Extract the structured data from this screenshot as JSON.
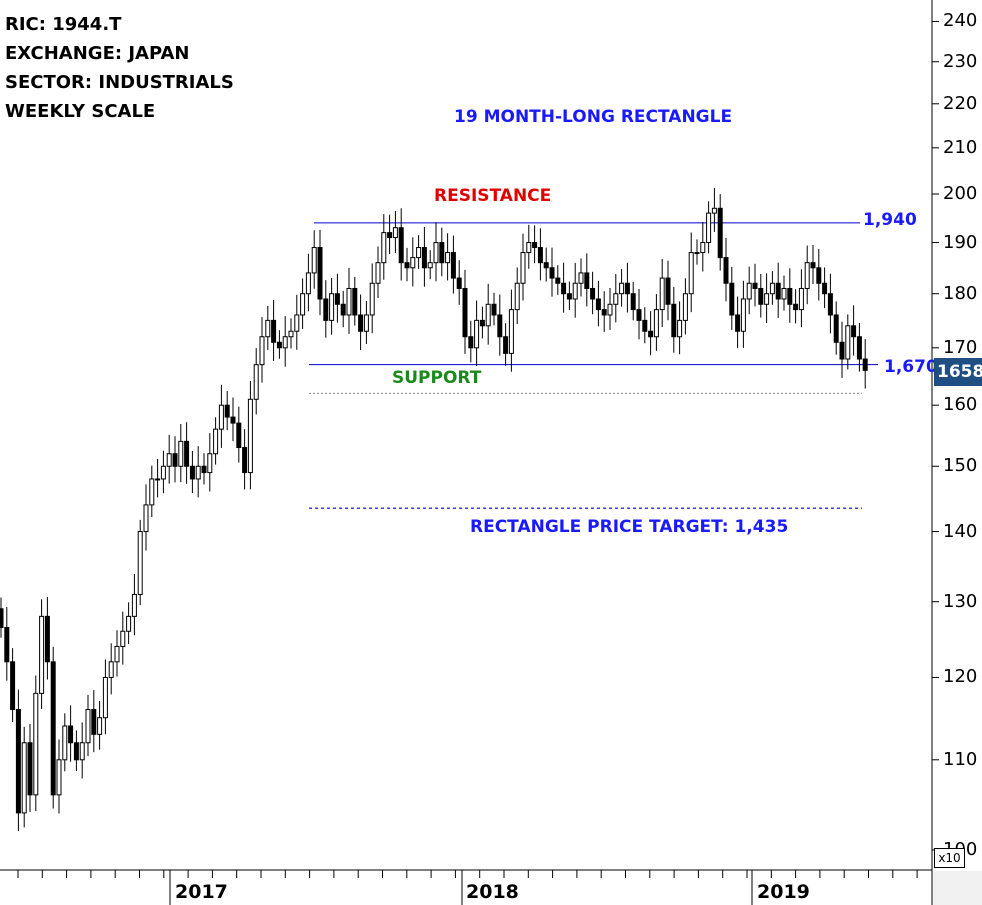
{
  "info": {
    "ric": "RIC: 1944.T",
    "exchange": "EXCHANGE: JAPAN",
    "sector": "SECTOR: INDUSTRIALS",
    "scale": "WEEKLY SCALE"
  },
  "labels": {
    "pattern": "19 MONTH-LONG RECTANGLE",
    "resistance": "RESISTANCE",
    "support": "SUPPORT",
    "target": "RECTANGLE PRICE TARGET: 1,435",
    "resistance_value": "1,940",
    "support_value": "1,670",
    "last_price": "1658",
    "multiplier": "x10"
  },
  "colors": {
    "level_line": "#0000cc",
    "resistance_text": "#e00000",
    "support_text": "#1a8a1a",
    "annotation_text": "#1a1aff",
    "badge_bg": "#1f4f82"
  },
  "chart_data": {
    "type": "candlestick",
    "scale": "log",
    "y_axis_ticks": [
      "240",
      "230",
      "220",
      "210",
      "200",
      "190",
      "180",
      "170",
      "160",
      "150",
      "140",
      "130",
      "120",
      "110",
      "100"
    ],
    "y_tick_values": [
      240,
      230,
      220,
      210,
      200,
      190,
      180,
      170,
      160,
      150,
      140,
      130,
      120,
      110,
      100
    ],
    "ylim": [
      97,
      248
    ],
    "x_axis_ticks": [
      "2017",
      "2018",
      "2019"
    ],
    "levels": {
      "resistance": 194.0,
      "support": 167.0,
      "dotted": 162.0,
      "target": 143.5
    },
    "weekly_close": [
      126.5,
      122,
      116,
      104,
      112,
      106,
      118,
      128,
      122,
      106,
      110,
      114,
      112,
      110,
      112,
      116,
      113,
      115,
      120,
      122,
      124,
      126,
      128,
      131,
      140,
      144,
      148,
      148,
      150,
      152,
      150,
      154,
      150,
      148,
      150,
      149,
      152,
      156,
      160,
      158,
      157,
      153,
      149,
      161,
      167,
      172,
      175,
      171,
      170,
      172,
      173,
      176,
      180,
      184,
      189,
      179,
      175,
      180,
      178,
      176,
      181,
      176,
      173,
      176,
      182,
      186,
      192,
      191,
      193,
      186,
      185,
      187,
      189,
      185,
      186,
      190,
      186,
      188,
      183,
      181,
      172,
      170,
      175,
      174,
      178,
      176,
      172,
      169,
      177,
      182,
      188,
      190,
      189,
      186,
      185,
      183,
      182,
      180,
      179,
      182,
      184,
      181,
      179,
      177,
      176,
      178,
      180,
      182,
      180,
      177,
      175,
      173,
      172,
      177,
      183,
      178,
      172,
      175,
      180,
      188,
      188,
      190,
      196,
      197,
      187,
      182,
      176,
      173,
      179,
      182,
      181,
      178,
      180,
      182,
      179,
      181,
      178,
      177,
      181,
      186,
      185,
      182,
      180,
      176,
      171,
      168,
      174,
      172,
      168,
      166
    ]
  }
}
